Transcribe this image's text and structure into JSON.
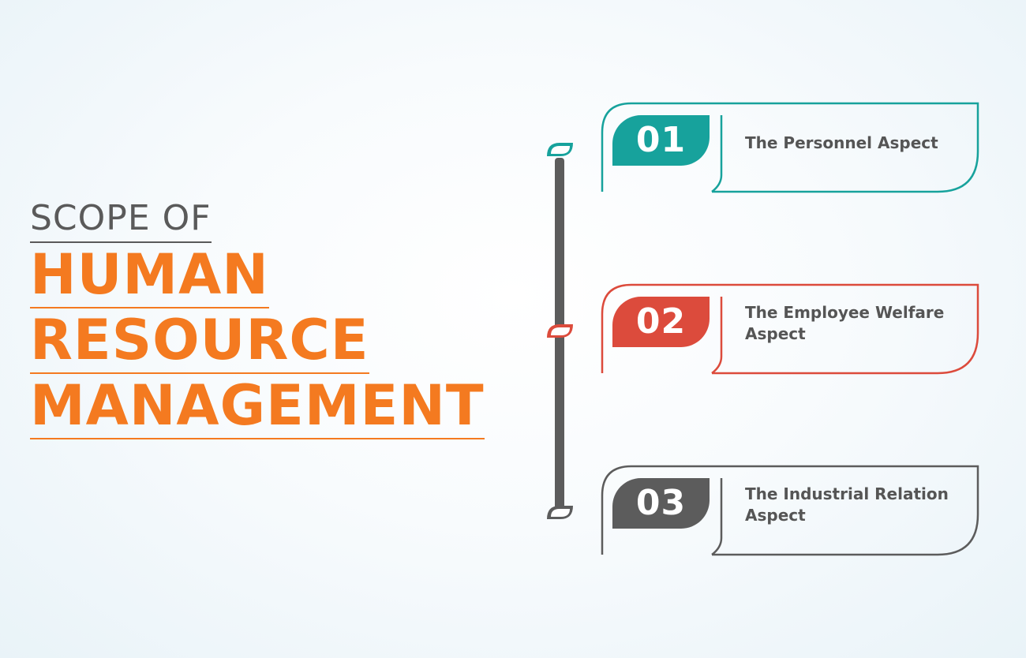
{
  "title": {
    "prefix": "SCOPE OF",
    "lines": [
      "HUMAN",
      "RESOURCE",
      "MANAGEMENT"
    ]
  },
  "items": [
    {
      "number": "01",
      "label": "The Personnel Aspect",
      "color": "#17a29c"
    },
    {
      "number": "02",
      "label": "The Employee Welfare Aspect",
      "color": "#dc4b3c"
    },
    {
      "number": "03",
      "label": "The Industrial Relation Aspect",
      "color": "#5c5c5c"
    }
  ],
  "colors": {
    "accent": "#f47a20",
    "heading_gray": "#5a5a5a",
    "timeline": "#5c5c5c",
    "label_text": "#555555"
  },
  "icons": {
    "timeline_marker": "leaf-icon"
  }
}
